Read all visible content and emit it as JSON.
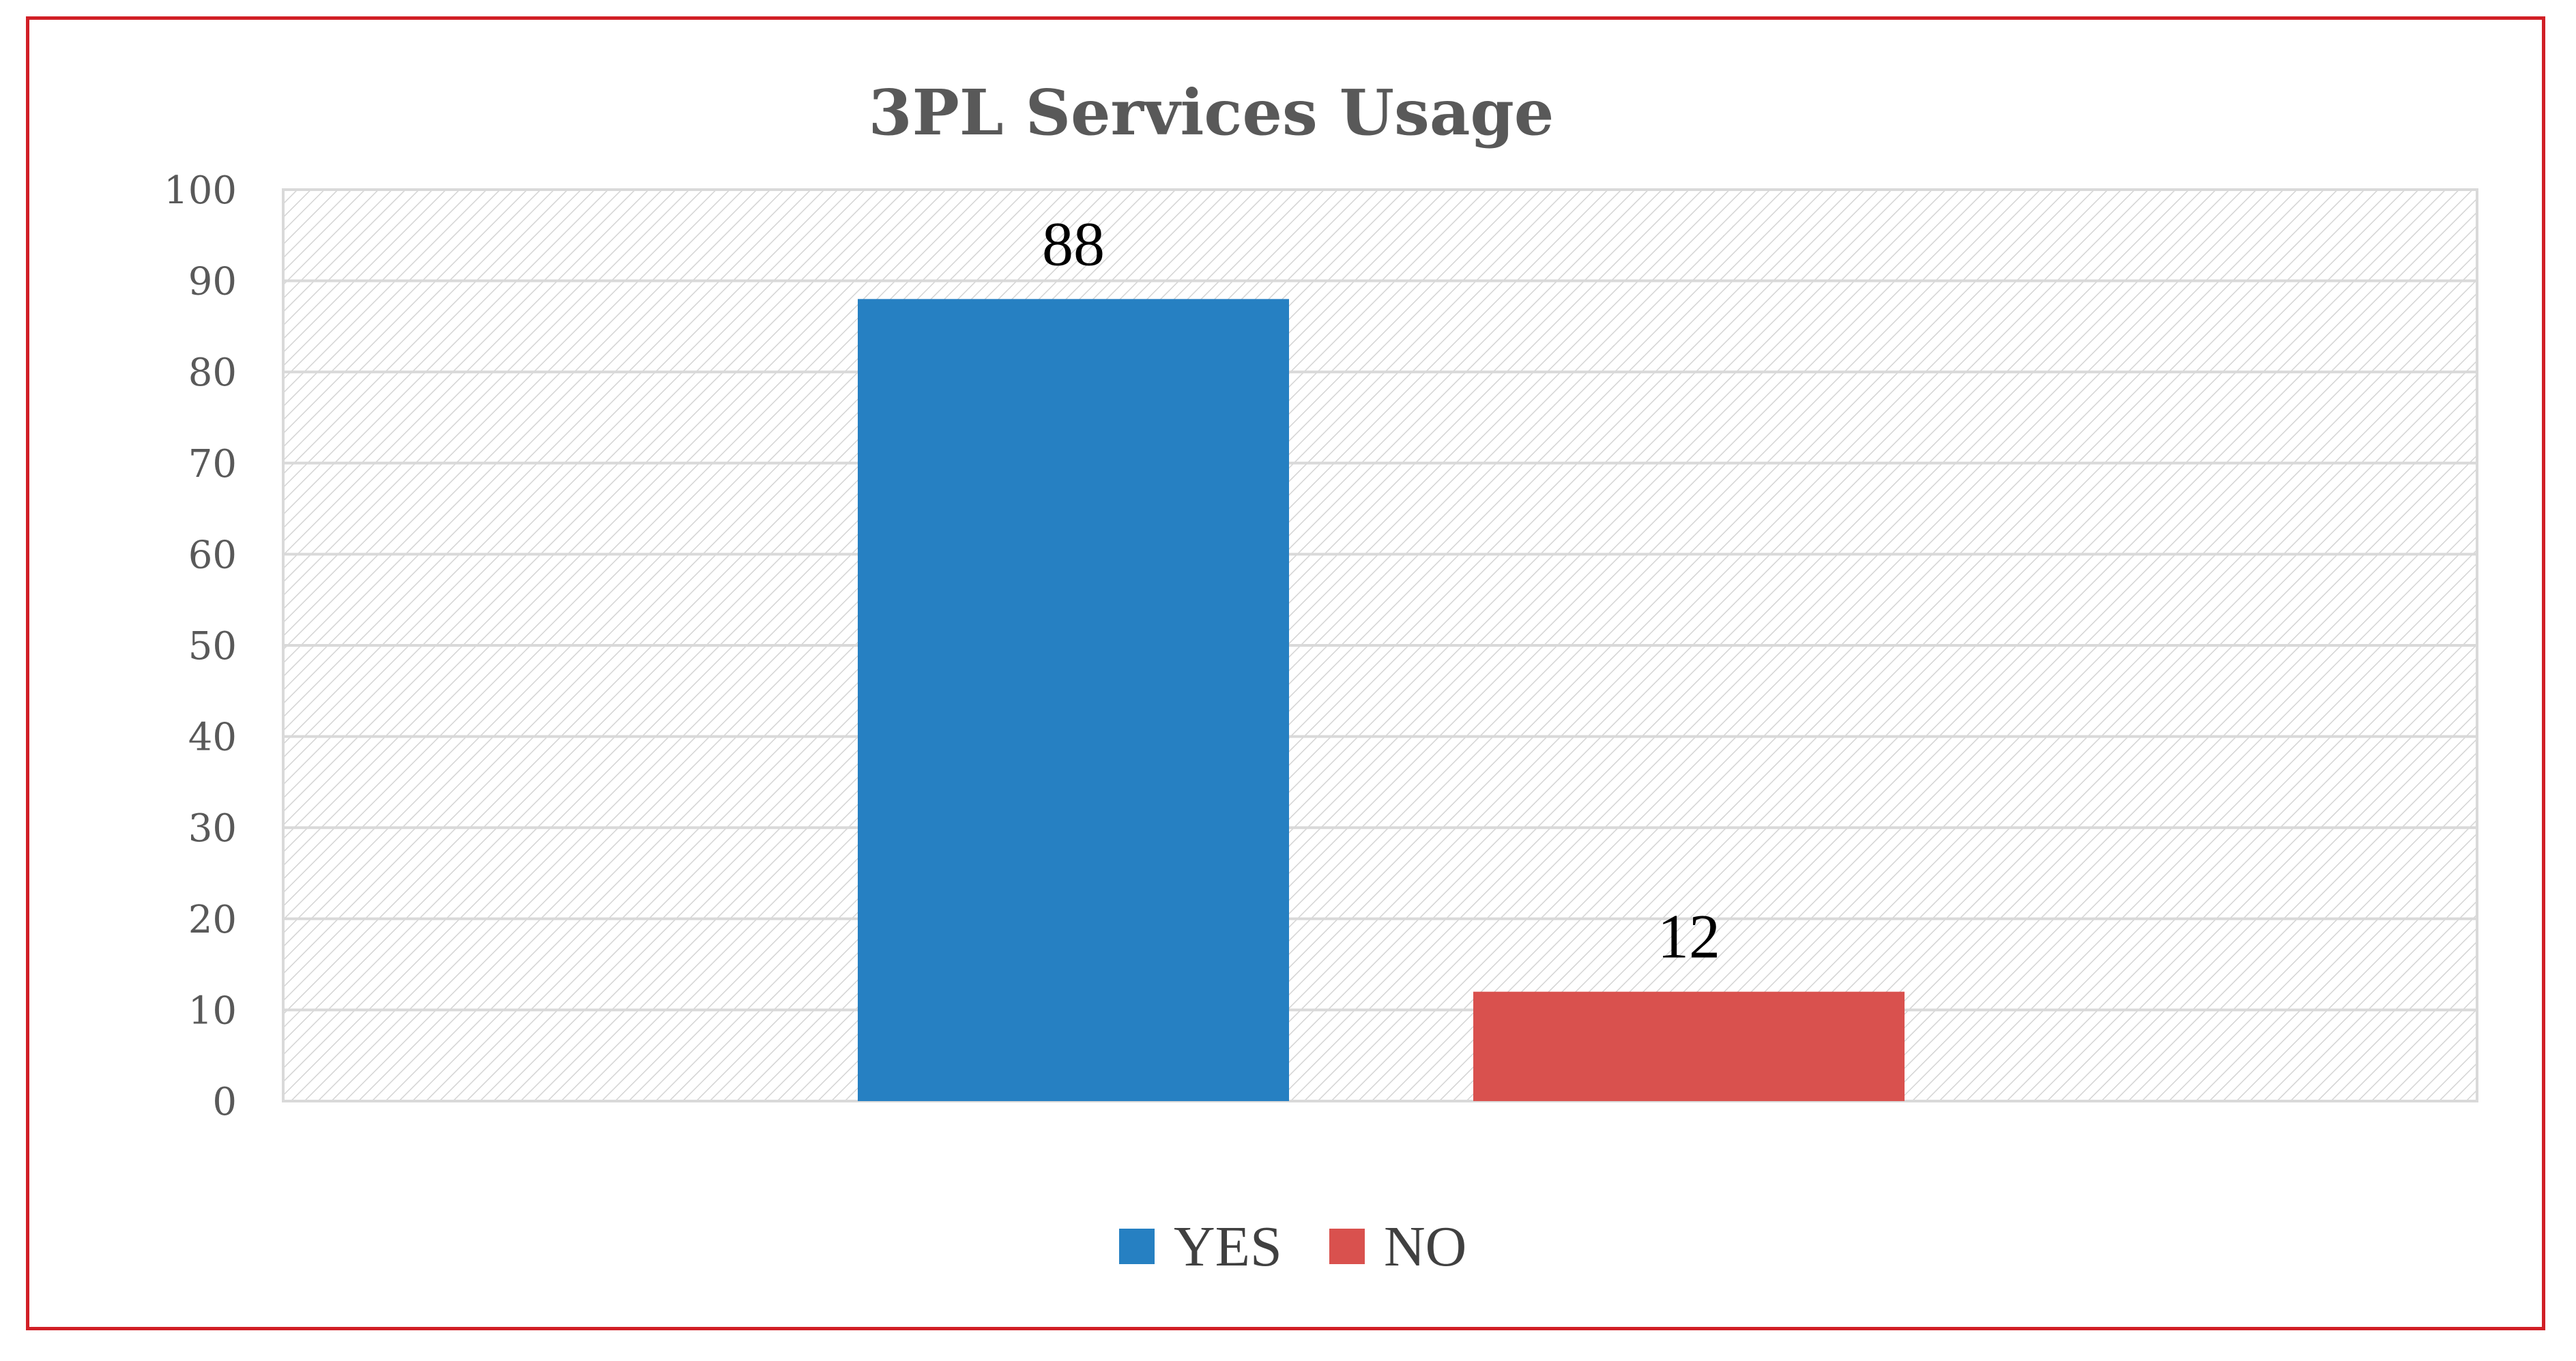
{
  "chart_data": {
    "type": "bar",
    "title": "3PL Services Usage",
    "xlabel": "",
    "ylabel": "",
    "ylim": [
      0,
      100
    ],
    "yticks": [
      0,
      10,
      20,
      30,
      40,
      50,
      60,
      70,
      80,
      90,
      100
    ],
    "grid": true,
    "legend_position": "bottom",
    "series": [
      {
        "name": "YES",
        "values": [
          88
        ],
        "color": "#2680c2"
      },
      {
        "name": "NO",
        "values": [
          12
        ],
        "color": "#d9514e"
      }
    ],
    "data_labels": [
      "88",
      "12"
    ]
  },
  "colors": {
    "frame_border": "#d11f26",
    "gridline": "#d9d9d9",
    "hatch": "#d4d4d4"
  }
}
